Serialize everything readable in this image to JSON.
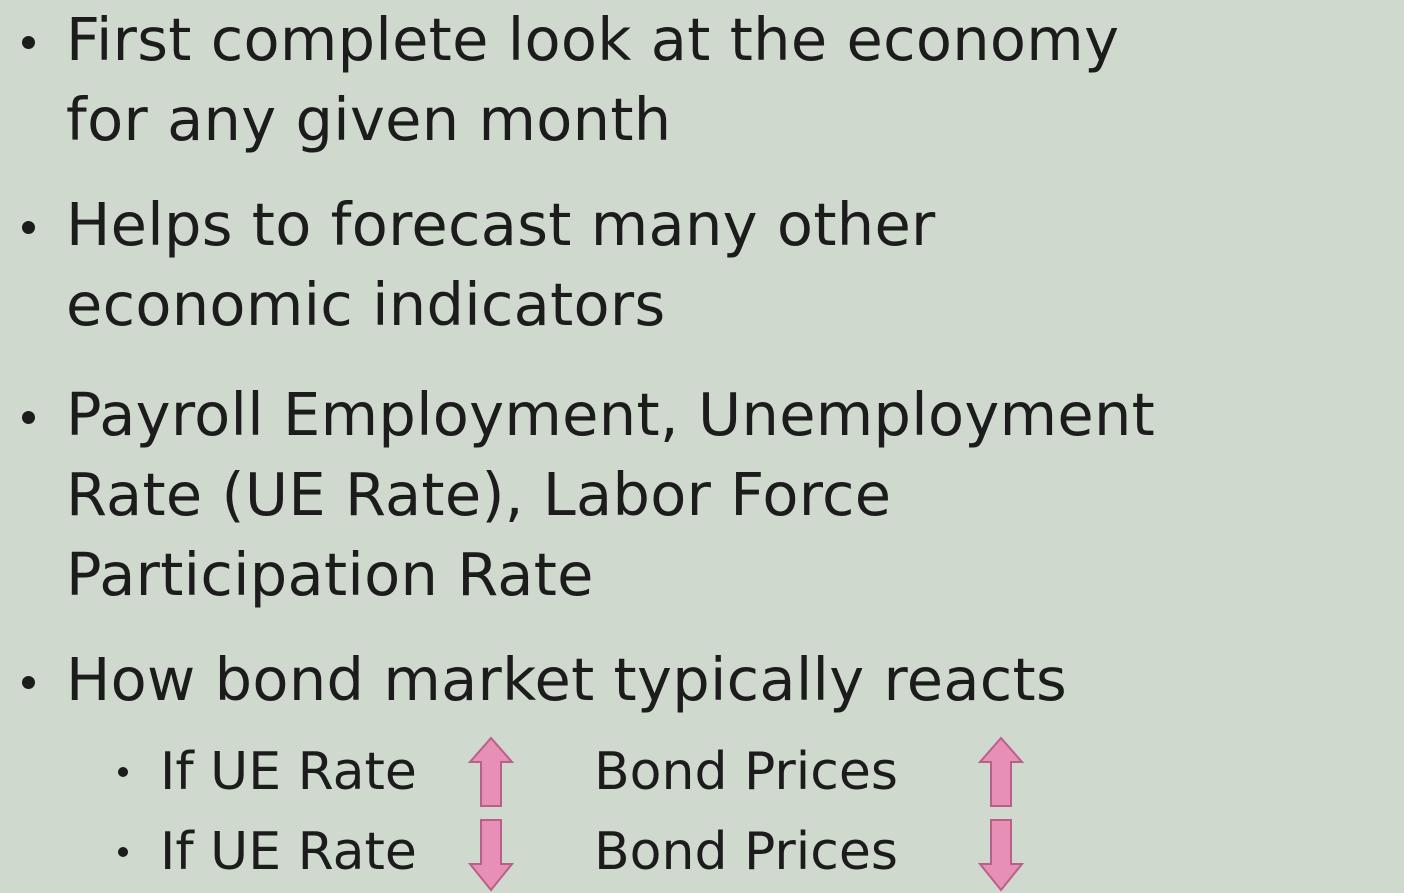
{
  "bullets": [
    {
      "lines": [
        "First complete look at the economy",
        "for any given month"
      ]
    },
    {
      "lines": [
        "Helps to forecast many other",
        "economic indicators"
      ]
    },
    {
      "lines": [
        "Payroll Employment, Unemployment",
        "Rate (UE Rate), Labor Force",
        "Participation Rate"
      ]
    },
    {
      "lines": [
        "How bond market typically reacts"
      ]
    }
  ],
  "sub_bullets": [
    {
      "condition": "If UE Rate",
      "result": "Bond Prices"
    },
    {
      "condition": "If UE Rate",
      "result": "Bond Prices"
    }
  ]
}
